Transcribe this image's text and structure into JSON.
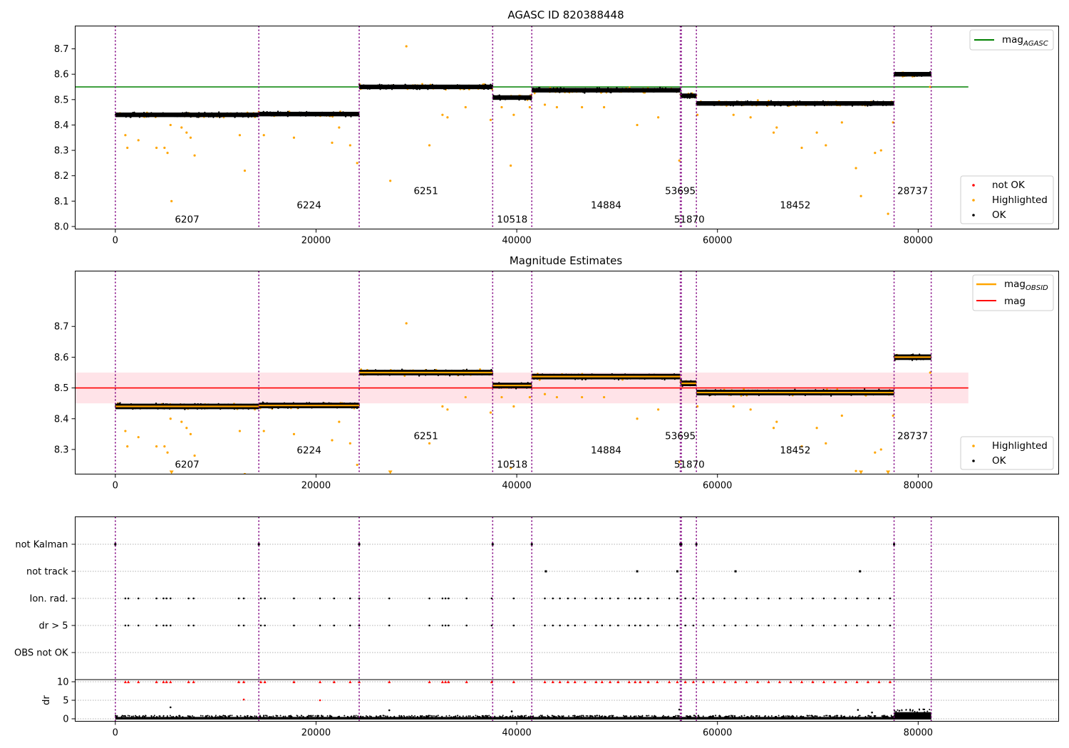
{
  "chart_data": [
    {
      "type": "scatter",
      "title": "AGASC ID 820388448",
      "xlim": [
        -4000,
        94000
      ],
      "ylim": [
        7.99,
        8.79
      ],
      "xticks": [
        "0",
        "20000",
        "40000",
        "60000",
        "80000"
      ],
      "yticks": [
        "8.0",
        "8.1",
        "8.2",
        "8.3",
        "8.4",
        "8.5",
        "8.6",
        "8.7"
      ],
      "mag_agasc": 8.55,
      "legend_upper": [
        {
          "label": "mag",
          "sub": "AGASC",
          "color": "#008000"
        }
      ],
      "legend_lower": [
        {
          "label": "not OK",
          "color": "#ff0000"
        },
        {
          "label": "Highlighted",
          "color": "#ffa500"
        },
        {
          "label": "OK",
          "color": "#000000"
        }
      ]
    },
    {
      "type": "scatter",
      "title": "Magnitude Estimates",
      "xlim": [
        -4000,
        94000
      ],
      "ylim": [
        8.22,
        8.88
      ],
      "xticks": [
        "0",
        "20000",
        "40000",
        "60000",
        "80000"
      ],
      "yticks": [
        "8.3",
        "8.4",
        "8.5",
        "8.6",
        "8.7"
      ],
      "mag": 8.5,
      "mag_band": [
        8.45,
        8.55
      ],
      "legend_upper": [
        {
          "label": "mag",
          "sub": "OBSID",
          "color": "#ffa500"
        },
        {
          "label": "mag",
          "sub": "",
          "color": "#ff0000"
        }
      ],
      "legend_lower": [
        {
          "label": "Highlighted",
          "color": "#ffa500"
        },
        {
          "label": "OK",
          "color": "#000000"
        }
      ]
    },
    {
      "type": "scatter",
      "flag_labels": [
        "not Kalman",
        "not track",
        "Ion. rad.",
        "dr > 5",
        "OBS not OK"
      ],
      "dr_yticks": [
        "0",
        "5",
        "10"
      ],
      "dr_ylabel": "dr",
      "xticks": [
        "0",
        "20000",
        "40000",
        "60000",
        "80000"
      ]
    }
  ],
  "observations": [
    {
      "obsid": "6207",
      "x_start": 0,
      "x_end": 14300,
      "mean": 8.44,
      "label_row": 0
    },
    {
      "obsid": "6224",
      "x_start": 14300,
      "x_end": 24300,
      "mean": 8.443,
      "label_row": 1
    },
    {
      "obsid": "6251",
      "x_start": 24300,
      "x_end": 37600,
      "mean": 8.55,
      "label_row": 2
    },
    {
      "obsid": "10518",
      "x_start": 37600,
      "x_end": 41500,
      "mean": 8.508,
      "label_row": 0
    },
    {
      "obsid": "14884",
      "x_start": 41500,
      "x_end": 56300,
      "mean": 8.537,
      "label_row": 1
    },
    {
      "obsid": "53695",
      "x_start": 56300,
      "x_end": 56400,
      "mean": 8.52,
      "label_row": 2
    },
    {
      "obsid": "51870",
      "x_start": 56400,
      "x_end": 57900,
      "mean": 8.515,
      "label_row": 0
    },
    {
      "obsid": "18452",
      "x_start": 57900,
      "x_end": 77600,
      "mean": 8.485,
      "label_row": 1
    },
    {
      "obsid": "28737",
      "x_start": 77600,
      "x_end": 81300,
      "mean": 8.6,
      "label_row": 2
    }
  ],
  "boundaries": [
    0,
    14300,
    24300,
    37600,
    41500,
    56300,
    56400,
    57900,
    77600,
    81300
  ],
  "outliers_panel1": [
    [
      1000,
      8.36
    ],
    [
      1200,
      8.31
    ],
    [
      2300,
      8.34
    ],
    [
      4100,
      8.31
    ],
    [
      4900,
      8.31
    ],
    [
      5200,
      8.29
    ],
    [
      5500,
      8.4
    ],
    [
      5600,
      8.1
    ],
    [
      6600,
      8.39
    ],
    [
      7100,
      8.37
    ],
    [
      7500,
      8.35
    ],
    [
      7900,
      8.28
    ],
    [
      12400,
      8.36
    ],
    [
      12900,
      8.22
    ],
    [
      14800,
      8.36
    ],
    [
      17800,
      8.35
    ],
    [
      21600,
      8.33
    ],
    [
      22300,
      8.39
    ],
    [
      23400,
      8.32
    ],
    [
      24100,
      8.25
    ],
    [
      27400,
      8.18
    ],
    [
      29000,
      8.71
    ],
    [
      31300,
      8.32
    ],
    [
      32600,
      8.44
    ],
    [
      33100,
      8.43
    ],
    [
      34900,
      8.47
    ],
    [
      37400,
      8.42
    ],
    [
      38500,
      8.47
    ],
    [
      39400,
      8.24
    ],
    [
      39700,
      8.44
    ],
    [
      41300,
      8.47
    ],
    [
      42800,
      8.48
    ],
    [
      44000,
      8.47
    ],
    [
      46500,
      8.47
    ],
    [
      48700,
      8.47
    ],
    [
      52000,
      8.4
    ],
    [
      54100,
      8.43
    ],
    [
      56200,
      8.26
    ],
    [
      58000,
      8.44
    ],
    [
      61600,
      8.44
    ],
    [
      63300,
      8.43
    ],
    [
      65600,
      8.37
    ],
    [
      65900,
      8.39
    ],
    [
      68400,
      8.31
    ],
    [
      69900,
      8.37
    ],
    [
      70800,
      8.32
    ],
    [
      72400,
      8.41
    ],
    [
      73800,
      8.23
    ],
    [
      74300,
      8.12
    ],
    [
      75700,
      8.29
    ],
    [
      76300,
      8.3
    ],
    [
      77000,
      8.05
    ],
    [
      77500,
      8.41
    ],
    [
      81200,
      8.55
    ]
  ],
  "flags": {
    "not_kalman": [
      0,
      14300,
      24300,
      37600,
      41500,
      56300,
      56400,
      57900,
      77600
    ],
    "not_track": [
      42900,
      52000,
      56000,
      61800,
      74200
    ],
    "ion_rad": [
      1000,
      1300,
      2300,
      4100,
      4800,
      5100,
      5500,
      7300,
      7800,
      12300,
      12800,
      14500,
      14900,
      17800,
      20400,
      21800,
      23400,
      24300,
      27300,
      31300,
      32600,
      32900,
      33200,
      35000,
      37500,
      39700,
      42800,
      43600,
      44300,
      45100,
      45800,
      46800,
      47900,
      48500,
      49300,
      50100,
      51200,
      51800,
      52300,
      53100,
      54000,
      55200,
      56000,
      56800,
      57600,
      58600,
      59600,
      60700,
      61800,
      62900,
      64000,
      65100,
      66200,
      67300,
      68400,
      69500,
      70600,
      71700,
      72800,
      73900,
      75000,
      76100,
      77200
    ],
    "dr_gt5": [
      1000,
      1300,
      2300,
      4100,
      4800,
      5100,
      5500,
      7300,
      7800,
      12300,
      12800,
      14500,
      14900,
      17800,
      20400,
      21800,
      23400,
      24300,
      27300,
      31300,
      32600,
      32900,
      33200,
      35000,
      37500,
      39700,
      42800,
      43600,
      44300,
      45100,
      45800,
      46800,
      47900,
      48500,
      49300,
      50100,
      51200,
      51800,
      52300,
      53100,
      54000,
      55200,
      56000,
      56800,
      57600,
      58600,
      59600,
      60700,
      61800,
      62900,
      64000,
      65100,
      66200,
      67300,
      68400,
      69500,
      70600,
      71700,
      72800,
      73900,
      75000,
      76100,
      77200
    ],
    "obs_not_ok": []
  },
  "dr_markers": [
    [
      12800,
      5.2
    ],
    [
      5500,
      3.1
    ],
    [
      20400,
      5.0
    ],
    [
      27300,
      2.3
    ],
    [
      39500,
      2.0
    ],
    [
      56200,
      2.5
    ],
    [
      74000,
      2.4
    ],
    [
      75400,
      1.7
    ]
  ]
}
